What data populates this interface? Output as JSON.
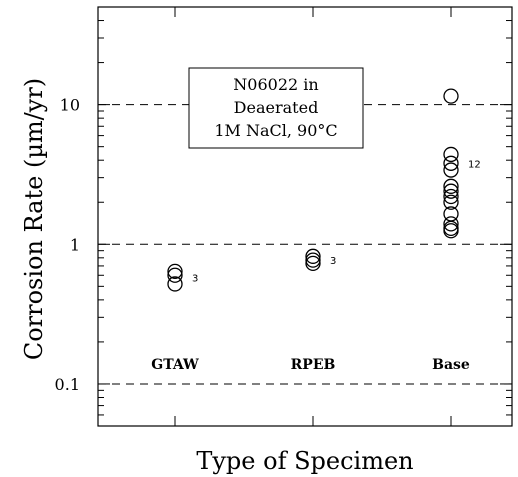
{
  "chart_data": {
    "type": "scatter",
    "title": "",
    "xlabel": "Type of Specimen",
    "ylabel": "Corrosion Rate (µm/yr)",
    "yscale": "log",
    "ylim": [
      0.05,
      50
    ],
    "yticks": [
      {
        "value": 0.1,
        "label": "0.1"
      },
      {
        "value": 1,
        "label": "1"
      },
      {
        "value": 10,
        "label": "10"
      }
    ],
    "reference_lines": [
      0.1,
      1,
      10
    ],
    "annotation": {
      "lines": [
        "N06022 in",
        "Deaerated",
        "1M NaCl, 90°C"
      ]
    },
    "categories": [
      "GTAW",
      "RPEB",
      "Base"
    ],
    "series": [
      {
        "category": "GTAW",
        "count_label": "3",
        "values": [
          0.52,
          0.6,
          0.64
        ]
      },
      {
        "category": "RPEB",
        "count_label": "3",
        "values": [
          0.73,
          0.77,
          0.82
        ]
      },
      {
        "category": "Base",
        "count_label": "12",
        "values": [
          11.5,
          4.4,
          3.8,
          3.4,
          2.6,
          2.4,
          2.2,
          2.0,
          1.65,
          1.4,
          1.3,
          1.25
        ]
      }
    ],
    "marker": "open-circle",
    "grid": false
  }
}
